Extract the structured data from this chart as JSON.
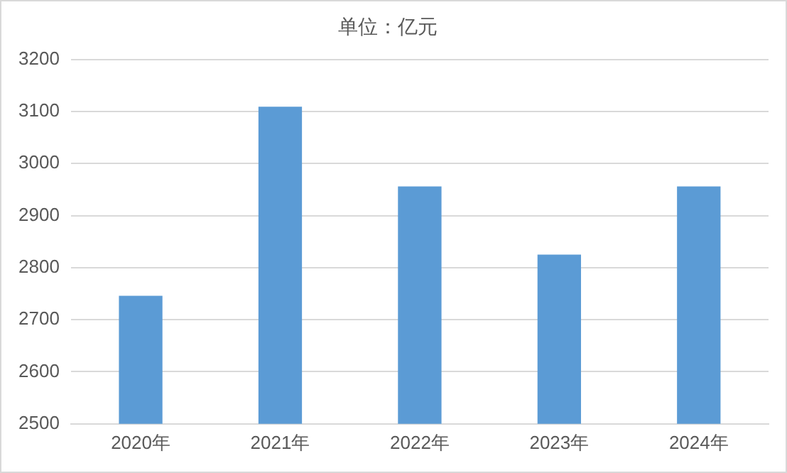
{
  "chart_data": {
    "type": "bar",
    "title": "单位：亿元",
    "categories": [
      "2020年",
      "2021年",
      "2022年",
      "2023年",
      "2024年"
    ],
    "values": [
      2746,
      3109,
      2956,
      2825,
      2956
    ],
    "color": "#5b9bd5",
    "ylim": [
      2500,
      3200
    ],
    "yticks": [
      2500,
      2600,
      2700,
      2800,
      2900,
      3000,
      3100,
      3200
    ],
    "grid": "y"
  }
}
